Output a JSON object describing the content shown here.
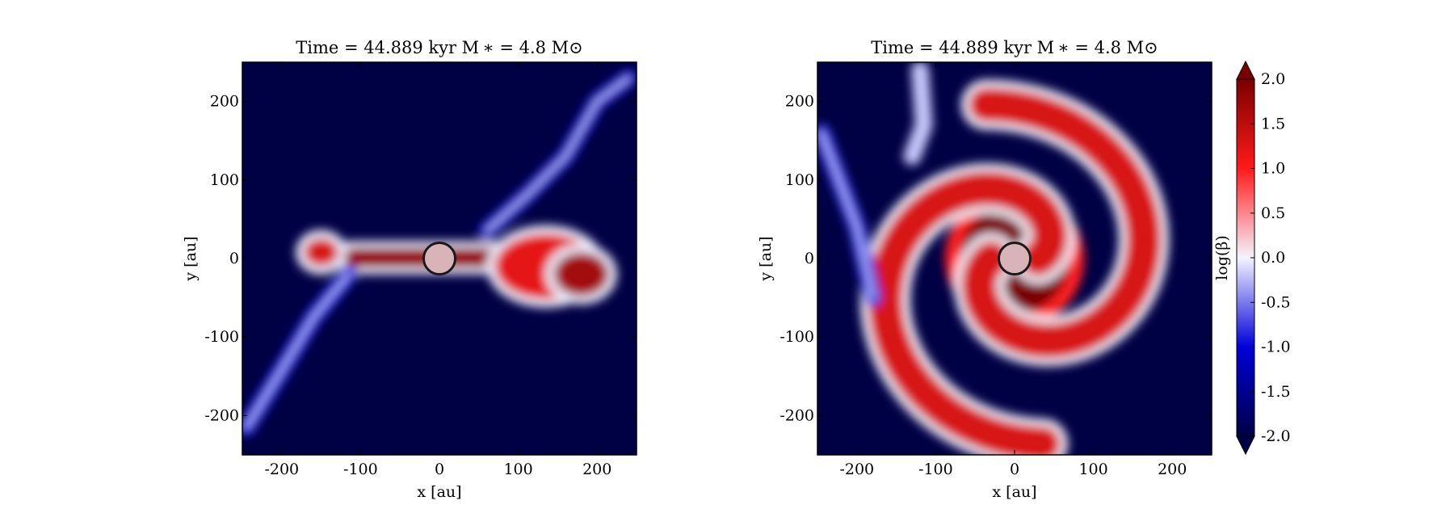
{
  "chart_data": [
    {
      "type": "heatmap",
      "panel": "left",
      "title": "Time = 44.889 kyr    M ∗ = 4.8 M⊙",
      "xlabel": "x [au]",
      "ylabel": "y [au]",
      "xlim": [
        -250,
        250
      ],
      "ylim": [
        -250,
        250
      ],
      "xticks": [
        -200,
        -100,
        0,
        100,
        200
      ],
      "yticks": [
        -200,
        -100,
        0,
        100,
        200
      ],
      "xtick_labels": [
        "-200",
        "-100",
        "0",
        "100",
        "200"
      ],
      "ytick_labels": [
        "-200",
        "-100",
        "0",
        "100",
        "200"
      ],
      "quantity_range": [
        -2.0,
        2.0
      ],
      "sink": {
        "x": 0,
        "y": 0,
        "radius_au": 20,
        "fill": "#d8b4b8"
      },
      "background_level": -2.0,
      "features": [
        {
          "kind": "blob",
          "cx": -150,
          "cy": 8,
          "rx": 22,
          "ry": 18,
          "level": 1.3
        },
        {
          "kind": "bar",
          "x0": -120,
          "x1": 75,
          "y0": -12,
          "y1": 14,
          "level": 1.8
        },
        {
          "kind": "blob",
          "cx": 135,
          "cy": -10,
          "rx": 65,
          "ry": 42,
          "level": 1.2
        },
        {
          "kind": "blob",
          "cx": 180,
          "cy": -20,
          "rx": 35,
          "ry": 28,
          "level": 1.7
        },
        {
          "kind": "filament",
          "points": [
            [
              -115,
              -20
            ],
            [
              -160,
              -75
            ],
            [
              -205,
              -150
            ],
            [
              -245,
              -215
            ]
          ],
          "level": -0.9
        },
        {
          "kind": "filament",
          "points": [
            [
              60,
              35
            ],
            [
              110,
              80
            ],
            [
              160,
              130
            ],
            [
              200,
              200
            ],
            [
              240,
              230
            ]
          ],
          "level": -1.1
        }
      ]
    },
    {
      "type": "heatmap",
      "panel": "right",
      "title": "Time = 44.889 kyr    M ∗ = 4.8 M⊙",
      "xlabel": "x [au]",
      "ylabel": "y [au]",
      "xlim": [
        -250,
        250
      ],
      "ylim": [
        -250,
        250
      ],
      "xticks": [
        -200,
        -100,
        0,
        100,
        200
      ],
      "yticks": [
        -200,
        -100,
        0,
        100,
        200
      ],
      "xtick_labels": [
        "-200",
        "-100",
        "0",
        "100",
        "200"
      ],
      "ytick_labels": [
        "-200",
        "-100",
        "0",
        "100",
        "200"
      ],
      "quantity_range": [
        -2.0,
        2.0
      ],
      "sink": {
        "x": 0,
        "y": 0,
        "radius_au": 20,
        "fill": "#d8b4b8"
      },
      "background_level": -2.0,
      "features": [
        {
          "kind": "core",
          "cx": 0,
          "cy": 0,
          "r": 70,
          "level": 2.0
        },
        {
          "kind": "spiral",
          "arms": 2,
          "inner_radius": 30,
          "outer_radius": 230,
          "level": 1.3
        },
        {
          "kind": "filament",
          "points": [
            [
              -120,
              240
            ],
            [
              -115,
              170
            ],
            [
              -130,
              130
            ]
          ],
          "level": -0.2
        },
        {
          "kind": "filament",
          "points": [
            [
              -245,
              160
            ],
            [
              -200,
              40
            ],
            [
              -180,
              -50
            ]
          ],
          "level": -0.8
        }
      ]
    }
  ],
  "colorbar": {
    "label": "log(β)",
    "ticks": [
      2.0,
      1.5,
      1.0,
      0.5,
      0.0,
      -0.5,
      -1.0,
      -1.5,
      -2.0
    ],
    "tick_labels": [
      "2.0",
      "1.5",
      "1.0",
      "0.5",
      "0.0",
      "-0.5",
      "-1.0",
      "-1.5",
      "-2.0"
    ],
    "extend": "both",
    "colormap": "seismic",
    "colors": [
      "#000045",
      "#0000d8",
      "#f4f4ff",
      "#ff1a1a",
      "#7a0000"
    ]
  }
}
